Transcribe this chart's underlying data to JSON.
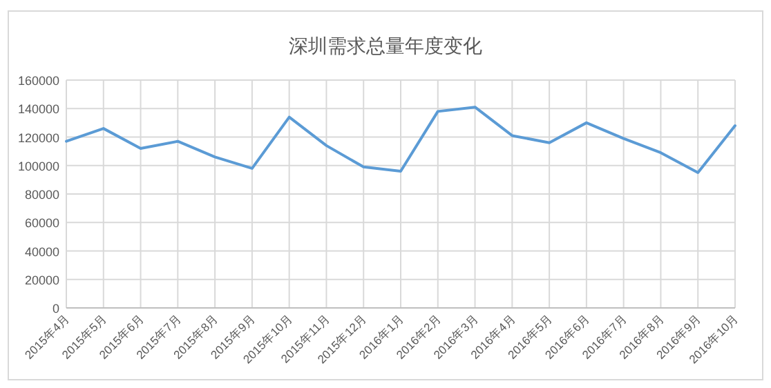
{
  "chart_data": {
    "type": "line",
    "title": "深圳需求总量年度变化",
    "categories": [
      "2015年4月",
      "2015年5月",
      "2015年6月",
      "2015年7月",
      "2015年8月",
      "2015年9月",
      "2015年10月",
      "2015年11月",
      "2015年12月",
      "2016年1月",
      "2016年2月",
      "2016年3月",
      "2016年4月",
      "2016年5月",
      "2016年6月",
      "2016年7月",
      "2016年8月",
      "2016年9月",
      "2016年10月"
    ],
    "series": [
      {
        "color": "#5b9bd5",
        "values": [
          117000,
          126000,
          112000,
          117000,
          106000,
          98000,
          134000,
          114000,
          99000,
          96000,
          138000,
          141000,
          121000,
          116000,
          130000,
          119000,
          109000,
          95000,
          128000
        ]
      }
    ],
    "ylim": [
      0,
      160000
    ],
    "yticks": [
      0,
      20000,
      40000,
      60000,
      80000,
      100000,
      120000,
      140000,
      160000
    ],
    "grid": true,
    "marker": "none",
    "line_style": "solid"
  }
}
